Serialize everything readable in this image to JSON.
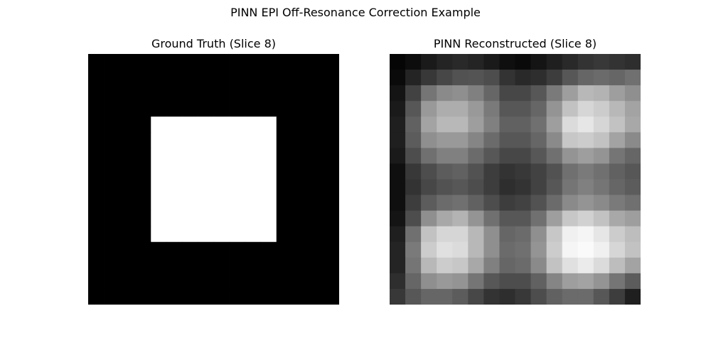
{
  "chart_data": {
    "type": "heatmap",
    "title": "PINN EPI Off-Resonance Correction Example",
    "colormap": "gray",
    "panels": [
      {
        "title": "Ground Truth (Slice 8)",
        "grid": [
          [
            0,
            0,
            0,
            0,
            0,
            0,
            0,
            0,
            0,
            0,
            0,
            0,
            0,
            0,
            0,
            0
          ],
          [
            0,
            0,
            0,
            0,
            0,
            0,
            0,
            0,
            0,
            0,
            0,
            0,
            0,
            0,
            0,
            0
          ],
          [
            0,
            0,
            0,
            0,
            0,
            0,
            0,
            0,
            0,
            0,
            0,
            0,
            0,
            0,
            0,
            0
          ],
          [
            0,
            0,
            0,
            0,
            0,
            0,
            0,
            0,
            0,
            0,
            0,
            0,
            0,
            0,
            0,
            0
          ],
          [
            0,
            0,
            0,
            0,
            1,
            1,
            1,
            1,
            1,
            1,
            1,
            1,
            0,
            0,
            0,
            0
          ],
          [
            0,
            0,
            0,
            0,
            1,
            1,
            1,
            1,
            1,
            1,
            1,
            1,
            0,
            0,
            0,
            0
          ],
          [
            0,
            0,
            0,
            0,
            1,
            1,
            1,
            1,
            1,
            1,
            1,
            1,
            0,
            0,
            0,
            0
          ],
          [
            0,
            0,
            0,
            0,
            1,
            1,
            1,
            1,
            1,
            1,
            1,
            1,
            0,
            0,
            0,
            0
          ],
          [
            0,
            0,
            0,
            0,
            1,
            1,
            1,
            1,
            1,
            1,
            1,
            1,
            0,
            0,
            0,
            0
          ],
          [
            0,
            0,
            0,
            0,
            1,
            1,
            1,
            1,
            1,
            1,
            1,
            1,
            0,
            0,
            0,
            0
          ],
          [
            0,
            0,
            0,
            0,
            1,
            1,
            1,
            1,
            1,
            1,
            1,
            1,
            0,
            0,
            0,
            0
          ],
          [
            0,
            0,
            0,
            0,
            1,
            1,
            1,
            1,
            1,
            1,
            1,
            1,
            0,
            0,
            0,
            0
          ],
          [
            0,
            0,
            0,
            0,
            0,
            0,
            0,
            0,
            0,
            0,
            0,
            0,
            0,
            0,
            0,
            0
          ],
          [
            0,
            0,
            0,
            0,
            0,
            0,
            0,
            0,
            0,
            0,
            0,
            0,
            0,
            0,
            0,
            0
          ],
          [
            0,
            0,
            0,
            0,
            0,
            0,
            0,
            0,
            0,
            0,
            0,
            0,
            0,
            0,
            0,
            0
          ],
          [
            0,
            0,
            0,
            0,
            0,
            0,
            0,
            0,
            0,
            0,
            0,
            0,
            0,
            0,
            0,
            0
          ]
        ]
      },
      {
        "title": "PINN Reconstructed (Slice 8)",
        "grid": [
          [
            0.02,
            0.05,
            0.1,
            0.14,
            0.16,
            0.14,
            0.1,
            0.06,
            0.04,
            0.08,
            0.12,
            0.16,
            0.2,
            0.22,
            0.2,
            0.18
          ],
          [
            0.04,
            0.14,
            0.22,
            0.28,
            0.32,
            0.33,
            0.3,
            0.2,
            0.16,
            0.18,
            0.24,
            0.34,
            0.4,
            0.42,
            0.4,
            0.44
          ],
          [
            0.08,
            0.26,
            0.46,
            0.54,
            0.56,
            0.5,
            0.4,
            0.28,
            0.28,
            0.34,
            0.48,
            0.62,
            0.72,
            0.7,
            0.62,
            0.56
          ],
          [
            0.1,
            0.34,
            0.6,
            0.68,
            0.68,
            0.6,
            0.48,
            0.34,
            0.34,
            0.4,
            0.58,
            0.76,
            0.84,
            0.8,
            0.72,
            0.64
          ],
          [
            0.12,
            0.38,
            0.64,
            0.72,
            0.72,
            0.62,
            0.5,
            0.38,
            0.38,
            0.44,
            0.62,
            0.86,
            0.9,
            0.84,
            0.76,
            0.66
          ],
          [
            0.12,
            0.36,
            0.56,
            0.6,
            0.6,
            0.52,
            0.42,
            0.34,
            0.34,
            0.4,
            0.54,
            0.78,
            0.8,
            0.76,
            0.64,
            0.54
          ],
          [
            0.1,
            0.3,
            0.44,
            0.5,
            0.5,
            0.42,
            0.34,
            0.28,
            0.28,
            0.34,
            0.44,
            0.58,
            0.62,
            0.58,
            0.46,
            0.4
          ],
          [
            0.06,
            0.22,
            0.3,
            0.36,
            0.38,
            0.32,
            0.24,
            0.2,
            0.22,
            0.26,
            0.32,
            0.44,
            0.48,
            0.44,
            0.38,
            0.34
          ],
          [
            0.06,
            0.2,
            0.28,
            0.32,
            0.34,
            0.3,
            0.24,
            0.18,
            0.2,
            0.26,
            0.34,
            0.46,
            0.5,
            0.46,
            0.4,
            0.36
          ],
          [
            0.06,
            0.24,
            0.36,
            0.42,
            0.44,
            0.38,
            0.3,
            0.24,
            0.26,
            0.32,
            0.42,
            0.54,
            0.58,
            0.54,
            0.48,
            0.44
          ],
          [
            0.08,
            0.3,
            0.56,
            0.66,
            0.7,
            0.58,
            0.44,
            0.34,
            0.34,
            0.44,
            0.62,
            0.78,
            0.82,
            0.76,
            0.66,
            0.62
          ],
          [
            0.12,
            0.44,
            0.76,
            0.84,
            0.84,
            0.72,
            0.56,
            0.4,
            0.42,
            0.56,
            0.78,
            0.94,
            0.96,
            0.9,
            0.8,
            0.74
          ],
          [
            0.14,
            0.48,
            0.8,
            0.88,
            0.86,
            0.72,
            0.56,
            0.42,
            0.44,
            0.58,
            0.8,
            0.96,
            0.98,
            0.94,
            0.84,
            0.76
          ],
          [
            0.14,
            0.46,
            0.72,
            0.8,
            0.78,
            0.66,
            0.5,
            0.4,
            0.42,
            0.54,
            0.76,
            0.88,
            0.92,
            0.86,
            0.74,
            0.64
          ],
          [
            0.18,
            0.4,
            0.56,
            0.6,
            0.58,
            0.46,
            0.34,
            0.3,
            0.3,
            0.38,
            0.52,
            0.62,
            0.64,
            0.58,
            0.46,
            0.36
          ],
          [
            0.22,
            0.34,
            0.4,
            0.4,
            0.36,
            0.28,
            0.2,
            0.18,
            0.22,
            0.3,
            0.38,
            0.42,
            0.42,
            0.34,
            0.24,
            0.12
          ]
        ]
      }
    ]
  }
}
